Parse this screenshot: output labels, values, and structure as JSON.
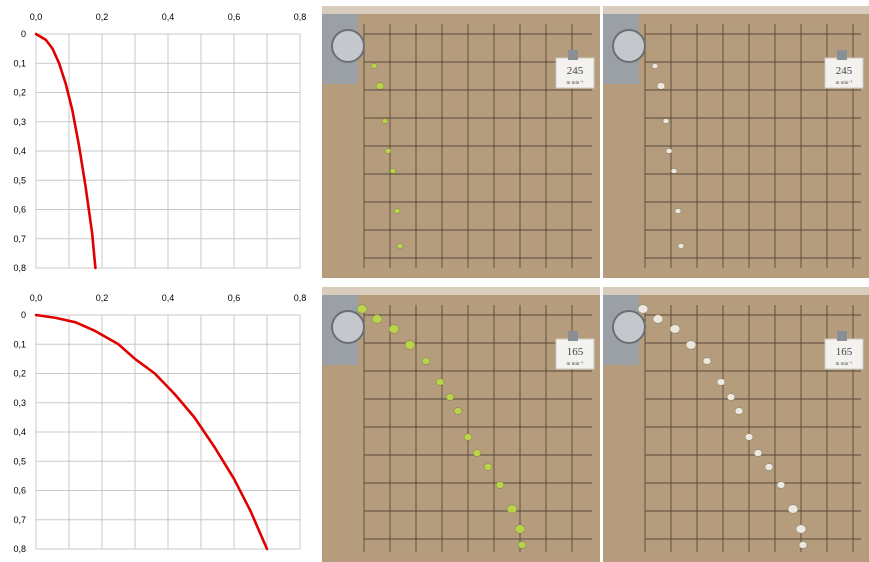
{
  "chart_data": [
    {
      "type": "line",
      "title": "",
      "xlabel": "",
      "ylabel": "",
      "xlim": [
        0,
        0.8
      ],
      "ylim": [
        0,
        0.8
      ],
      "y_inverted": true,
      "x_axis_position": "top",
      "grid": true,
      "x_ticks": [
        "0,0",
        "0,2",
        "0,4",
        "0,6",
        "0,8"
      ],
      "y_ticks": [
        "0",
        "0,1",
        "0,2",
        "0,3",
        "0,4",
        "0,5",
        "0,6",
        "0,7",
        "0,8"
      ],
      "series": [
        {
          "color": "#e00000",
          "x": [
            0.0,
            0.03,
            0.05,
            0.07,
            0.09,
            0.11,
            0.13,
            0.15,
            0.17,
            0.18
          ],
          "y": [
            0.0,
            0.02,
            0.05,
            0.1,
            0.17,
            0.26,
            0.38,
            0.52,
            0.68,
            0.8
          ]
        }
      ]
    },
    {
      "type": "line",
      "title": "",
      "xlabel": "",
      "ylabel": "",
      "xlim": [
        0,
        0.8
      ],
      "ylim": [
        0,
        0.8
      ],
      "y_inverted": true,
      "x_axis_position": "top",
      "grid": true,
      "x_ticks": [
        "0,0",
        "0,2",
        "0,4",
        "0,6",
        "0,8"
      ],
      "y_ticks": [
        "0",
        "0,1",
        "0,2",
        "0,3",
        "0,4",
        "0,5",
        "0,6",
        "0,7",
        "0,8"
      ],
      "series": [
        {
          "color": "#e00000",
          "x": [
            0.0,
            0.06,
            0.12,
            0.18,
            0.25,
            0.3,
            0.36,
            0.42,
            0.48,
            0.54,
            0.6,
            0.65,
            0.7
          ],
          "y": [
            0.0,
            0.01,
            0.025,
            0.055,
            0.1,
            0.15,
            0.2,
            0.27,
            0.35,
            0.45,
            0.56,
            0.67,
            0.8
          ]
        }
      ]
    }
  ],
  "photos": [
    {
      "card_value": "245",
      "card_unit": "m min⁻¹"
    },
    {
      "card_value": "245",
      "card_unit": "m min⁻¹"
    },
    {
      "card_value": "165",
      "card_unit": "m min⁻¹"
    },
    {
      "card_value": "165",
      "card_unit": "m min⁻¹"
    }
  ]
}
